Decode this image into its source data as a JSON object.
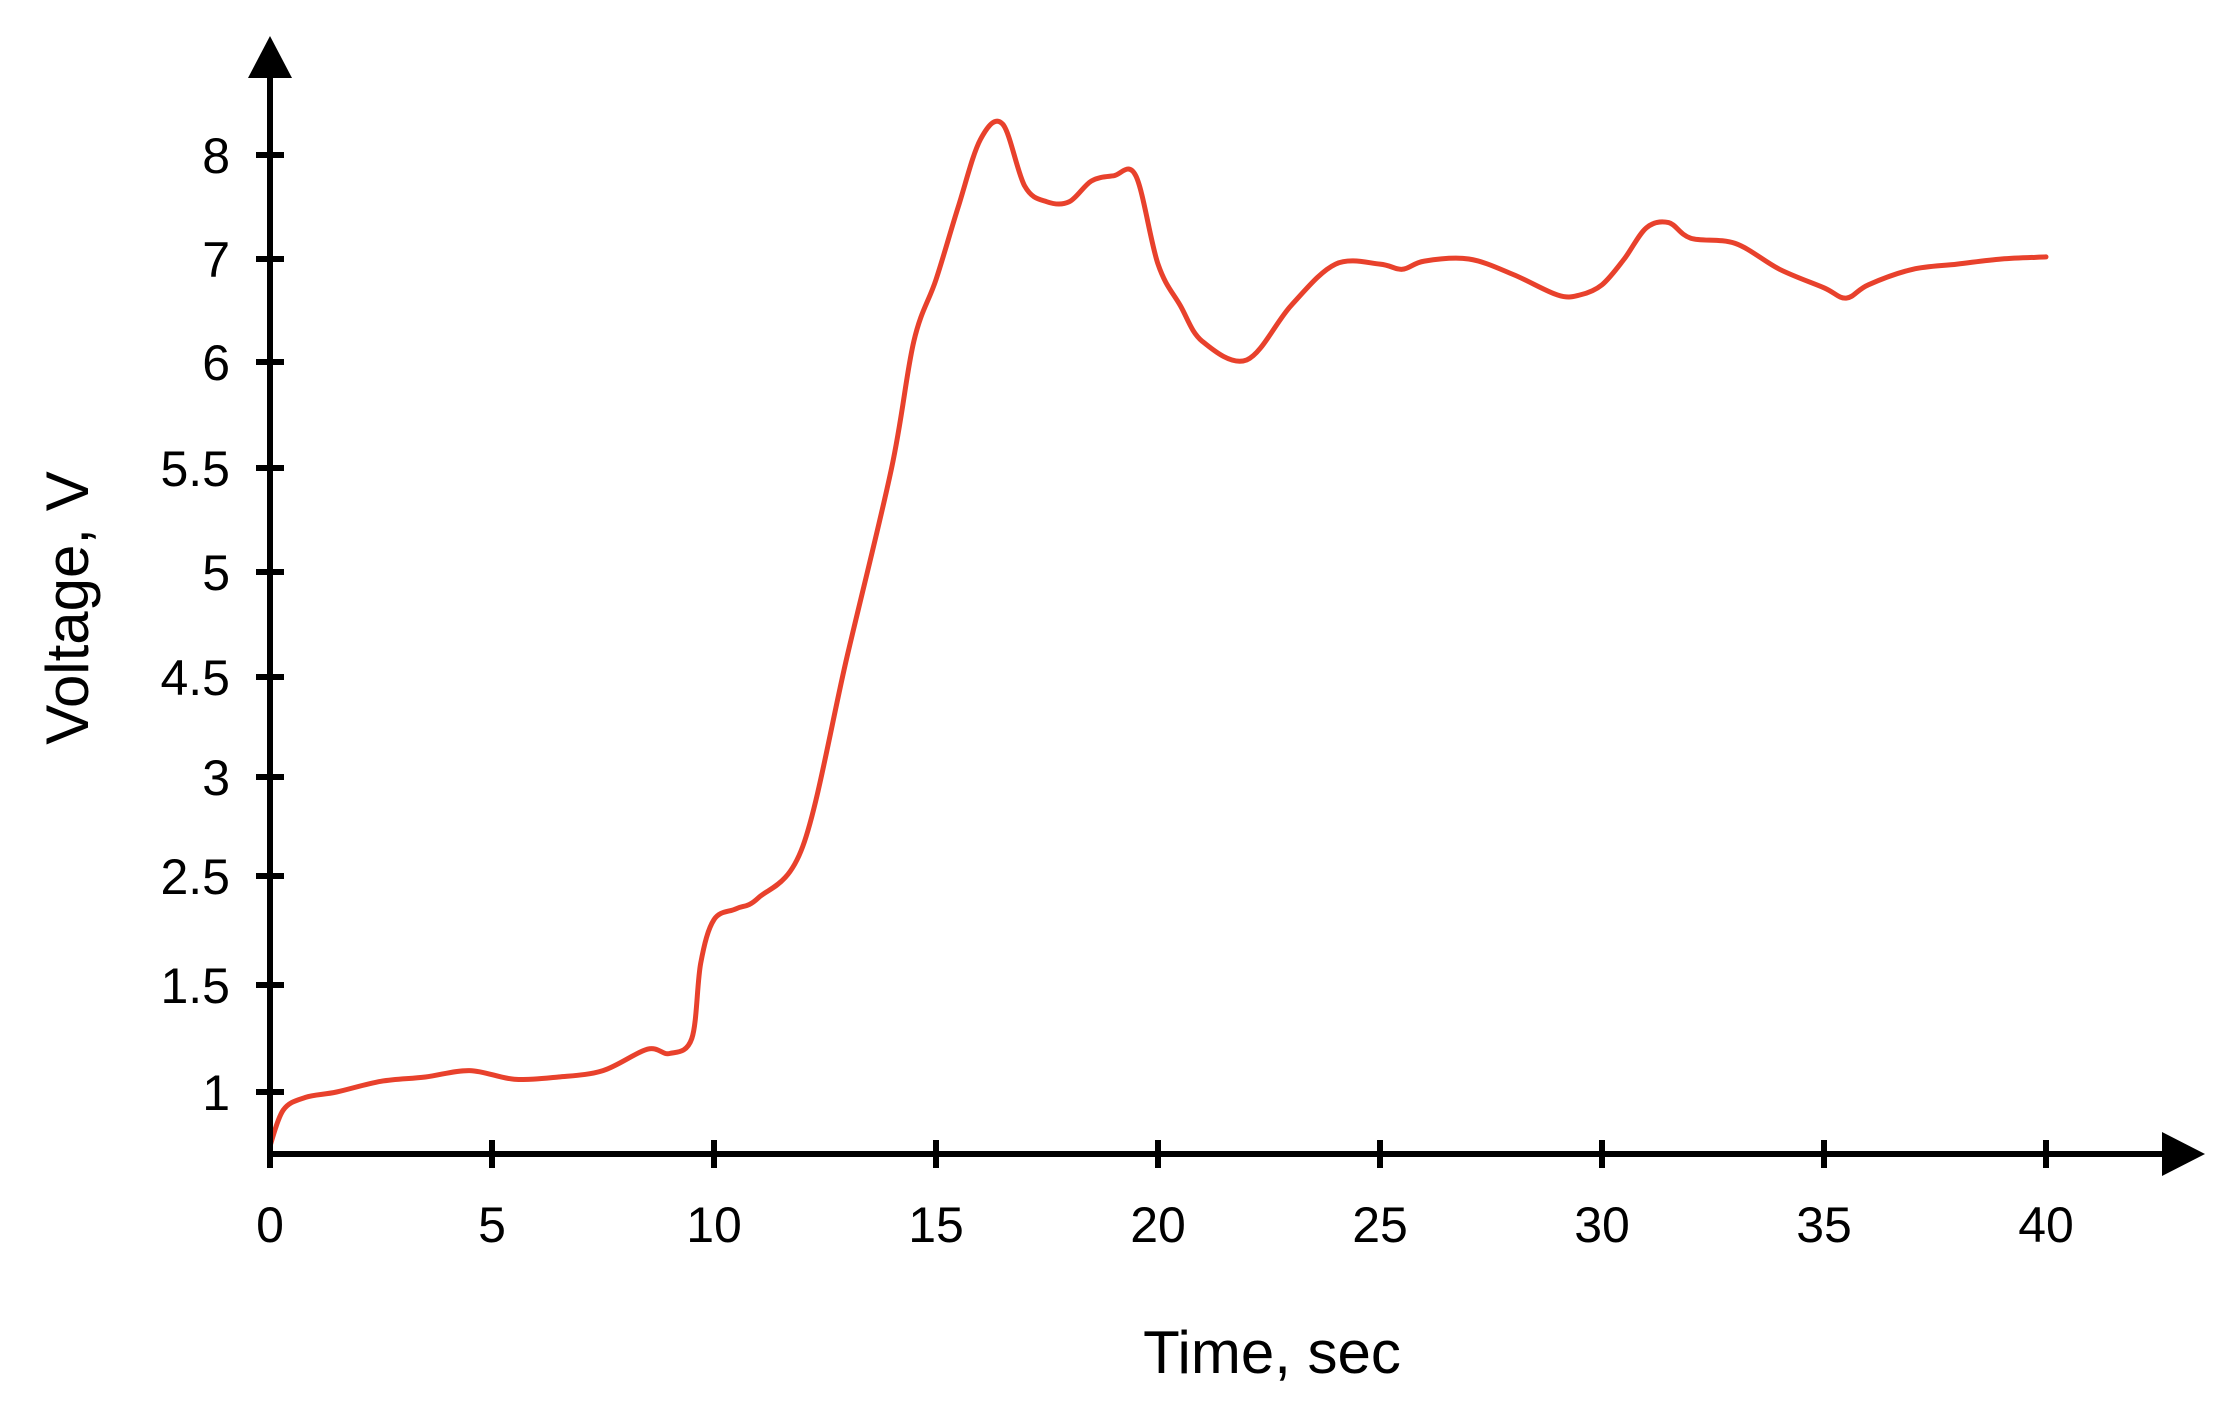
{
  "chart_data": {
    "type": "line",
    "title": "",
    "xlabel": "Time, sec",
    "ylabel": "Voltage, V",
    "xlim": [
      0,
      40
    ],
    "x_ticks": [
      0,
      5,
      10,
      15,
      20,
      25,
      30,
      35,
      40
    ],
    "x_tick_labels": [
      "0",
      "5",
      "10",
      "15",
      "20",
      "25",
      "30",
      "35",
      "40"
    ],
    "y_ticks": [
      1,
      1.5,
      2.5,
      3,
      4.5,
      5,
      5.5,
      6,
      7,
      8
    ],
    "y_tick_labels": [
      "1",
      "1.5",
      "2.5",
      "3",
      "4.5",
      "5",
      "5.5",
      "6",
      "7",
      "8"
    ],
    "grid": false,
    "legend": "none",
    "series_color": "#e8412c",
    "series": [
      {
        "x": [
          0,
          0.3,
          0.8,
          1.5,
          2.5,
          3.5,
          4.5,
          5.5,
          6.5,
          7.5,
          8.5,
          9.0,
          9.5,
          9.7,
          10.0,
          10.5,
          11.0,
          12.0,
          13.0,
          14.0,
          14.5,
          15.0,
          15.5,
          16.0,
          16.5,
          17.0,
          17.5,
          18.0,
          18.5,
          19.0,
          19.5,
          20.0,
          20.5,
          21.0,
          22.0,
          23.0,
          24.0,
          25.0,
          25.5,
          26.0,
          27.0,
          28.0,
          29.0,
          29.5,
          30.0,
          30.5,
          31.0,
          31.5,
          32.0,
          33.0,
          34.0,
          35.0,
          35.5,
          36.0,
          37.0,
          38.0,
          39.0,
          40.0
        ],
        "y": [
          0.7,
          0.9,
          0.97,
          1.0,
          1.05,
          1.07,
          1.1,
          1.06,
          1.07,
          1.1,
          1.2,
          1.18,
          1.25,
          1.7,
          2.1,
          2.2,
          2.3,
          2.65,
          4.6,
          5.5,
          6.2,
          6.8,
          7.5,
          8.1,
          8.2,
          7.7,
          7.55,
          7.55,
          7.75,
          7.8,
          7.8,
          6.95,
          6.55,
          6.2,
          6.02,
          6.55,
          6.95,
          6.95,
          6.9,
          6.98,
          7.0,
          6.85,
          6.65,
          6.65,
          6.75,
          7.0,
          7.3,
          7.35,
          7.2,
          7.15,
          6.9,
          6.72,
          6.62,
          6.75,
          6.9,
          6.95,
          7.0,
          7.02
        ]
      }
    ]
  }
}
